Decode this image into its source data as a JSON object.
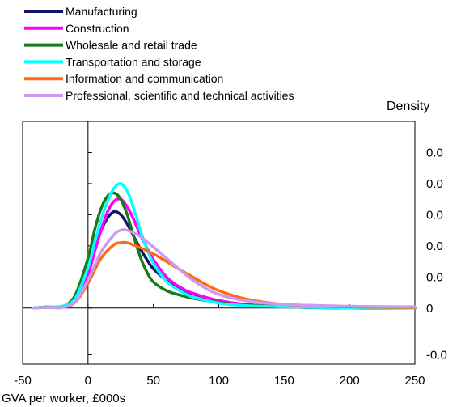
{
  "chart_data": {
    "type": "line",
    "xlabel": "GVA per worker, £000s",
    "ylabel": "Density",
    "xlim": [
      -50,
      250
    ],
    "ylim": [
      -0.009,
      0.03
    ],
    "x_ticks": [
      -50,
      0,
      50,
      100,
      150,
      200,
      250
    ],
    "x_tick_labels": [
      "-50",
      "0",
      "50",
      "100",
      "150",
      "200",
      "250"
    ],
    "y_ticks": [
      -0.0075,
      0,
      0.005,
      0.01,
      0.015,
      0.02,
      0.025
    ],
    "y_tick_labels": [
      "-0.0",
      "0",
      "0.0",
      "0.0",
      "0.0",
      "0.0",
      "0.0"
    ],
    "grid": false,
    "legend_position": "top-left",
    "series": [
      {
        "name": "Manufacturing",
        "color": "#14146e",
        "points": [
          [
            -42,
            0
          ],
          [
            -30,
            0.0002
          ],
          [
            -20,
            0.0002
          ],
          [
            -10,
            0.0015
          ],
          [
            0,
            0.006
          ],
          [
            5,
            0.0095
          ],
          [
            10,
            0.0125
          ],
          [
            15,
            0.0145
          ],
          [
            20,
            0.0155
          ],
          [
            25,
            0.015
          ],
          [
            30,
            0.0135
          ],
          [
            35,
            0.0115
          ],
          [
            40,
            0.0095
          ],
          [
            45,
            0.0078
          ],
          [
            50,
            0.0063
          ],
          [
            60,
            0.0045
          ],
          [
            70,
            0.0032
          ],
          [
            80,
            0.0023
          ],
          [
            100,
            0.0012
          ],
          [
            120,
            0.0006
          ],
          [
            150,
            0.0002
          ],
          [
            200,
            0
          ],
          [
            250,
            0
          ]
        ]
      },
      {
        "name": "Construction",
        "color": "#ff00ff",
        "points": [
          [
            -42,
            0
          ],
          [
            -30,
            0.0002
          ],
          [
            -20,
            0.0001
          ],
          [
            -10,
            0.0012
          ],
          [
            0,
            0.0055
          ],
          [
            5,
            0.009
          ],
          [
            10,
            0.0125
          ],
          [
            15,
            0.0155
          ],
          [
            20,
            0.0172
          ],
          [
            25,
            0.0175
          ],
          [
            30,
            0.0163
          ],
          [
            35,
            0.0142
          ],
          [
            40,
            0.0118
          ],
          [
            45,
            0.0097
          ],
          [
            50,
            0.0078
          ],
          [
            60,
            0.005
          ],
          [
            70,
            0.0034
          ],
          [
            80,
            0.0024
          ],
          [
            100,
            0.0012
          ],
          [
            120,
            0.0006
          ],
          [
            150,
            0.0002
          ],
          [
            200,
            0
          ],
          [
            250,
            0
          ]
        ]
      },
      {
        "name": "Wholesale and retail trade",
        "color": "#1a7a1a",
        "points": [
          [
            -42,
            0
          ],
          [
            -30,
            0.0002
          ],
          [
            -20,
            0.0002
          ],
          [
            -10,
            0.002
          ],
          [
            0,
            0.008
          ],
          [
            5,
            0.0125
          ],
          [
            10,
            0.016
          ],
          [
            15,
            0.018
          ],
          [
            20,
            0.0185
          ],
          [
            25,
            0.0175
          ],
          [
            30,
            0.015
          ],
          [
            35,
            0.0115
          ],
          [
            40,
            0.0082
          ],
          [
            45,
            0.0058
          ],
          [
            50,
            0.0042
          ],
          [
            60,
            0.0028
          ],
          [
            70,
            0.0021
          ],
          [
            80,
            0.0016
          ],
          [
            100,
            0.0009
          ],
          [
            120,
            0.0005
          ],
          [
            150,
            0.0002
          ],
          [
            200,
            0
          ],
          [
            250,
            0
          ]
        ]
      },
      {
        "name": "Transportation and storage",
        "color": "#00ffff",
        "points": [
          [
            -42,
            0
          ],
          [
            -30,
            0.0002
          ],
          [
            -20,
            0.0003
          ],
          [
            -10,
            0.0015
          ],
          [
            0,
            0.0065
          ],
          [
            5,
            0.0105
          ],
          [
            10,
            0.0142
          ],
          [
            15,
            0.0172
          ],
          [
            20,
            0.0193
          ],
          [
            25,
            0.02
          ],
          [
            30,
            0.0188
          ],
          [
            35,
            0.016
          ],
          [
            40,
            0.0125
          ],
          [
            45,
            0.0095
          ],
          [
            50,
            0.0072
          ],
          [
            60,
            0.0043
          ],
          [
            70,
            0.0028
          ],
          [
            80,
            0.0018
          ],
          [
            100,
            0.0008
          ],
          [
            120,
            0.0004
          ],
          [
            150,
            0.0002
          ],
          [
            200,
            0
          ],
          [
            250,
            0
          ]
        ]
      },
      {
        "name": "Information and communication",
        "color": "#ff6a13",
        "points": [
          [
            -42,
            0
          ],
          [
            -30,
            0.0001
          ],
          [
            -20,
            0.0001
          ],
          [
            -10,
            0.0009
          ],
          [
            0,
            0.004
          ],
          [
            10,
            0.008
          ],
          [
            20,
            0.0102
          ],
          [
            25,
            0.0105
          ],
          [
            30,
            0.0105
          ],
          [
            40,
            0.0097
          ],
          [
            50,
            0.0087
          ],
          [
            60,
            0.0075
          ],
          [
            70,
            0.0062
          ],
          [
            80,
            0.005
          ],
          [
            90,
            0.0038
          ],
          [
            100,
            0.0028
          ],
          [
            120,
            0.0015
          ],
          [
            150,
            0.0006
          ],
          [
            200,
            0.0002
          ],
          [
            250,
            0.0001
          ]
        ]
      },
      {
        "name": "Professional, scientific and technical activities",
        "color": "#cc9af2",
        "points": [
          [
            -42,
            0
          ],
          [
            -30,
            0.0001
          ],
          [
            -20,
            0.0001
          ],
          [
            -10,
            0.001
          ],
          [
            0,
            0.0045
          ],
          [
            10,
            0.009
          ],
          [
            20,
            0.0118
          ],
          [
            25,
            0.0125
          ],
          [
            30,
            0.0125
          ],
          [
            40,
            0.0115
          ],
          [
            50,
            0.0098
          ],
          [
            60,
            0.008
          ],
          [
            70,
            0.0062
          ],
          [
            80,
            0.0045
          ],
          [
            90,
            0.0032
          ],
          [
            100,
            0.0022
          ],
          [
            120,
            0.0012
          ],
          [
            150,
            0.0006
          ],
          [
            200,
            0.0003
          ],
          [
            250,
            0.0002
          ]
        ]
      }
    ]
  }
}
